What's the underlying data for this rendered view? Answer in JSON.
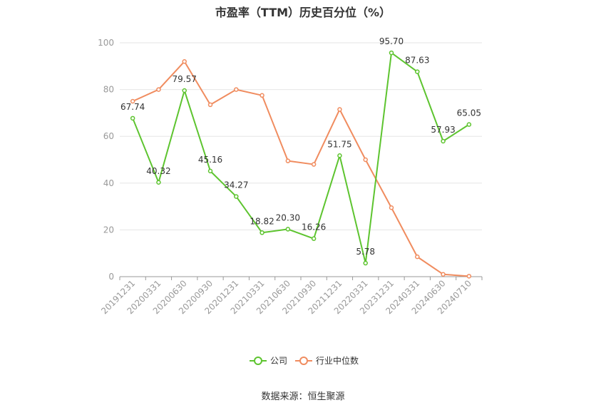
{
  "chart_data": {
    "type": "line",
    "title": "市盈率（TTM）历史百分位（%）",
    "categories": [
      "20191231",
      "20200331",
      "20200630",
      "20200930",
      "20201231",
      "20210331",
      "20210630",
      "20210930",
      "20211231",
      "20220331",
      "20231231",
      "20240331",
      "20240630",
      "20240710"
    ],
    "ylim": [
      0,
      100
    ],
    "yticks": [
      0,
      20,
      40,
      60,
      80,
      100
    ],
    "grid": true,
    "legend_position": "bottom",
    "series": [
      {
        "name": "公司",
        "color": "#5dc42f",
        "values": [
          67.74,
          40.32,
          79.57,
          45.16,
          34.27,
          18.82,
          20.3,
          16.26,
          51.75,
          5.78,
          95.7,
          87.63,
          57.93,
          65.05
        ],
        "labels": [
          "67.74",
          "40.32",
          "79.57",
          "45.16",
          "34.27",
          "18.82",
          "20.30",
          "16.26",
          "51.75",
          "5.78",
          "95.70",
          "87.63",
          "57.93",
          "65.05"
        ]
      },
      {
        "name": "行业中位数",
        "color": "#f08c5f",
        "values": [
          75,
          80,
          92,
          73.5,
          80,
          77.5,
          49.5,
          48,
          71.5,
          50,
          29.5,
          8.5,
          1,
          0.2
        ]
      }
    ]
  },
  "source_text": "数据来源：恒生聚源"
}
